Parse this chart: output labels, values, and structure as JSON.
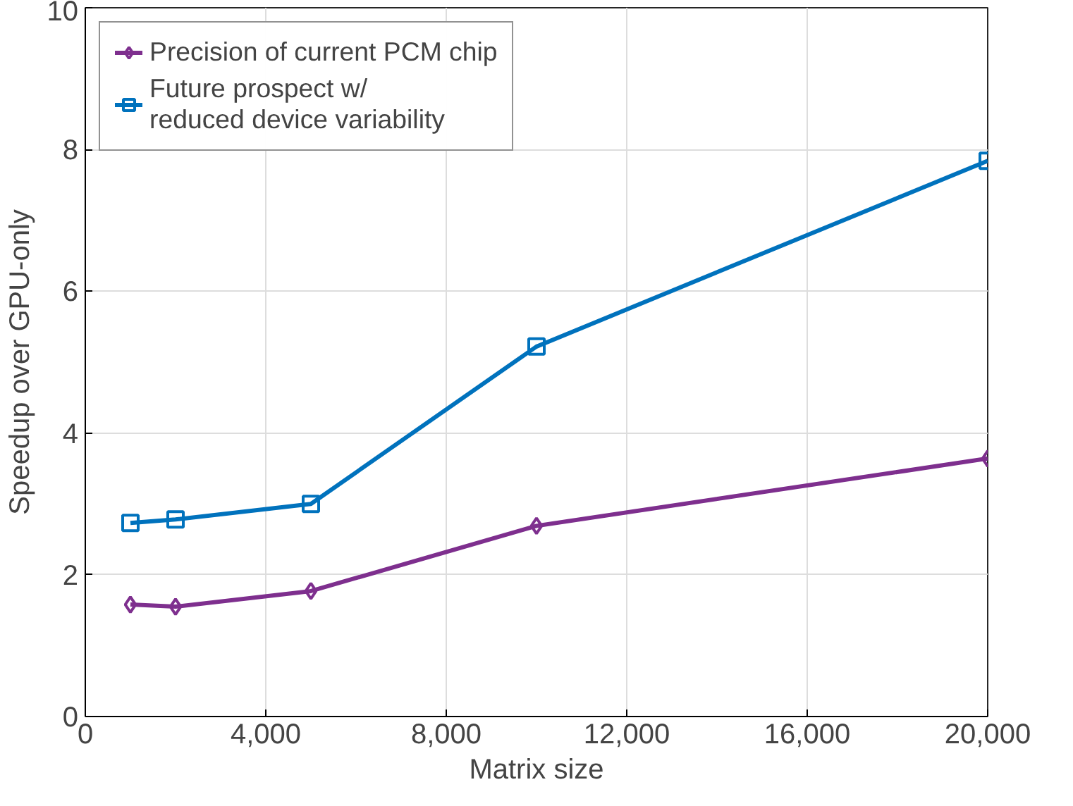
{
  "chart_data": {
    "type": "line",
    "xlabel": "Matrix size",
    "ylabel": "Speedup over GPU-only",
    "x": [
      1000,
      2000,
      5000,
      10000,
      20000
    ],
    "series": [
      {
        "name": "Precision of current PCM chip",
        "color": "#7e2f8e",
        "marker": "diamond",
        "values": [
          1.58,
          1.55,
          1.77,
          2.69,
          3.64
        ]
      },
      {
        "name": "Future prospect w/\nreduced device variability",
        "color": "#0072bd",
        "marker": "square",
        "values": [
          2.73,
          2.78,
          3.0,
          5.22,
          7.84
        ]
      }
    ],
    "xlim": [
      0,
      20000
    ],
    "ylim": [
      0,
      10
    ],
    "xticks": [
      0,
      {
        "value": 4000,
        "label": "4,000"
      },
      {
        "value": 8000,
        "label": "8,000"
      },
      {
        "value": 12000,
        "label": "12,000"
      },
      {
        "value": 16000,
        "label": "16,000"
      },
      {
        "value": 20000,
        "label": "20,000"
      }
    ],
    "yticks": [
      0,
      2,
      4,
      6,
      8,
      10
    ],
    "grid": true,
    "legend": "top left",
    "line_style": "solid"
  }
}
